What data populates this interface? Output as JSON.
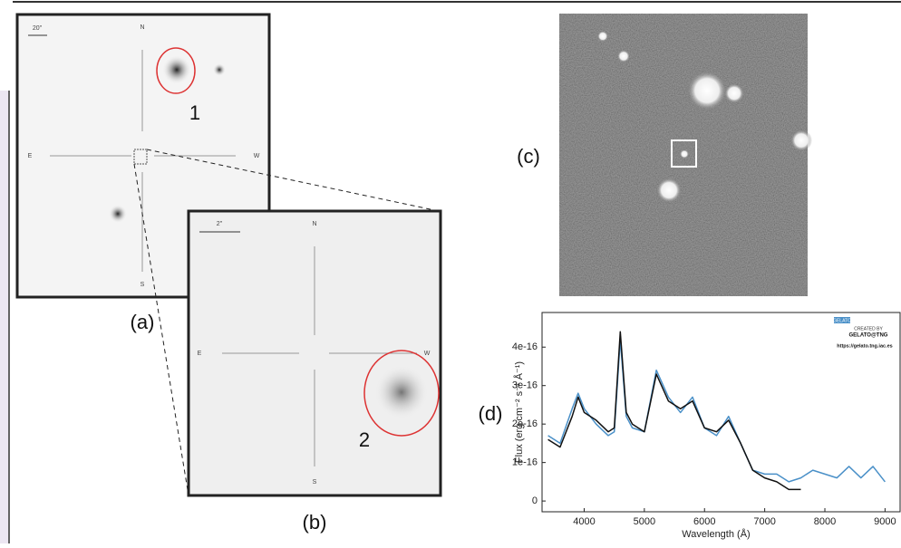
{
  "figure": {
    "panel_a": "(a)",
    "panel_b": "(b)",
    "panel_c": "(c)",
    "panel_d": "(d)",
    "object_1": "1",
    "object_2": "2",
    "compass_a": {
      "n": "N",
      "e": "E",
      "w": "W",
      "s": "S",
      "scale": "20\""
    },
    "compass_b": {
      "n": "N",
      "e": "E",
      "w": "W",
      "s": "S",
      "scale": "2\""
    },
    "logo": {
      "name": "GELATO",
      "created_by": "CREATED BY",
      "tool": "GELATO@TNG",
      "url": "https://gelato.tng.iac.es"
    }
  },
  "chart_data": {
    "type": "line",
    "xlabel": "Wavelength (Å)",
    "ylabel": "Flux (erg cm⁻² s⁻¹ Å⁻¹)",
    "x": [
      3400,
      3600,
      3800,
      3900,
      4000,
      4200,
      4400,
      4500,
      4600,
      4700,
      4800,
      5000,
      5200,
      5400,
      5600,
      5800,
      6000,
      6200,
      6400,
      6600,
      6800,
      7000,
      7200,
      7400,
      7600,
      7800,
      8000,
      8200,
      8400,
      8600,
      8800,
      9000
    ],
    "xlim": [
      3300,
      9250
    ],
    "xticks": [
      4000,
      5000,
      6000,
      7000,
      8000,
      9000
    ],
    "ylim": [
      -2.8e-17,
      4.9e-16
    ],
    "yticks": [
      0,
      {
        "value": 1e-16,
        "label": "1e-16"
      },
      {
        "value": 2e-16,
        "label": "2e-16"
      },
      {
        "value": 3e-16,
        "label": "3e-16"
      },
      {
        "value": 4e-16,
        "label": "4e-16"
      }
    ],
    "series": [
      {
        "color": "#4a90c8",
        "values": [
          1.7e-16,
          1.5e-16,
          2.4e-16,
          2.8e-16,
          2.4e-16,
          2e-16,
          1.7e-16,
          1.8e-16,
          4.2e-16,
          2.2e-16,
          1.9e-16,
          1.8e-16,
          3.4e-16,
          2.7e-16,
          2.3e-16,
          2.7e-16,
          1.9e-16,
          1.7e-16,
          2.2e-16,
          1.5e-16,
          8e-17,
          7e-17,
          7e-17,
          5e-17,
          6e-17,
          8e-17,
          7e-17,
          6e-17,
          9e-17,
          6e-17,
          9e-17,
          5e-17
        ]
      },
      {
        "color": "#111111",
        "values": [
          1.6e-16,
          1.4e-16,
          2.2e-16,
          2.7e-16,
          2.3e-16,
          2.1e-16,
          1.8e-16,
          1.9e-16,
          4.4e-16,
          2.3e-16,
          2e-16,
          1.8e-16,
          3.3e-16,
          2.6e-16,
          2.4e-16,
          2.6e-16,
          1.9e-16,
          1.8e-16,
          2.1e-16,
          1.5e-16,
          8e-17,
          6e-17,
          5e-17,
          3e-17,
          3e-17,
          null,
          null,
          null,
          null,
          null,
          null,
          null
        ]
      }
    ]
  }
}
